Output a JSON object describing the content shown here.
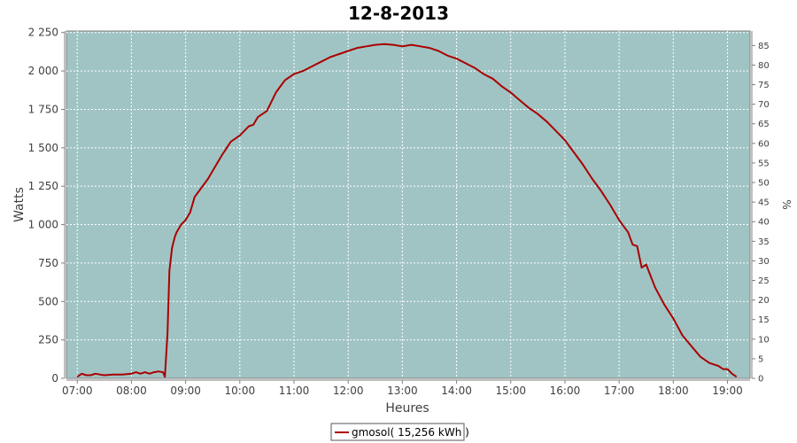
{
  "chart_data": {
    "type": "line",
    "title": "12-8-2013",
    "xlabel": "Heures",
    "ylabel": "Watts",
    "y2label": "%",
    "x_ticks": [
      "07:00",
      "08:00",
      "09:00",
      "10:00",
      "11:00",
      "12:00",
      "13:00",
      "14:00",
      "15:00",
      "16:00",
      "17:00",
      "18:00",
      "19:00"
    ],
    "y_ticks": [
      "0",
      "250",
      "500",
      "750",
      "1 000",
      "1 250",
      "1 500",
      "1 750",
      "2 000",
      "2 250"
    ],
    "y_tick_values": [
      0,
      250,
      500,
      750,
      1000,
      1250,
      1500,
      1750,
      2000,
      2250
    ],
    "y2_ticks": [
      "0",
      "5",
      "10",
      "15",
      "20",
      "25",
      "30",
      "35",
      "40",
      "45",
      "50",
      "55",
      "60",
      "65",
      "70",
      "75",
      "80",
      "85"
    ],
    "y2_tick_values": [
      0,
      5,
      10,
      15,
      20,
      25,
      30,
      35,
      40,
      45,
      50,
      55,
      60,
      65,
      70,
      75,
      80,
      85
    ],
    "xlim": [
      "06:48",
      "19:25"
    ],
    "ylim": [
      0,
      2260
    ],
    "y2lim": [
      0,
      88.7
    ],
    "grid": true,
    "legend_position": "bottom-center",
    "colors": {
      "plot_bg": "#a0c4c4",
      "line": "#aa0000",
      "grid": "#ffffff"
    },
    "series": [
      {
        "name": "gmosol( 15,256 kWh )",
        "x": [
          "07:00",
          "07:05",
          "07:10",
          "07:15",
          "07:20",
          "07:25",
          "07:30",
          "07:40",
          "07:50",
          "08:00",
          "08:05",
          "08:10",
          "08:15",
          "08:20",
          "08:25",
          "08:30",
          "08:35",
          "08:37",
          "08:40",
          "08:42",
          "08:45",
          "08:48",
          "08:50",
          "08:55",
          "09:00",
          "09:05",
          "09:10",
          "09:15",
          "09:20",
          "09:25",
          "09:30",
          "09:40",
          "09:50",
          "10:00",
          "10:05",
          "10:10",
          "10:15",
          "10:20",
          "10:25",
          "10:30",
          "10:35",
          "10:40",
          "10:45",
          "10:50",
          "11:00",
          "11:10",
          "11:20",
          "11:30",
          "11:40",
          "11:50",
          "12:00",
          "12:10",
          "12:20",
          "12:30",
          "12:40",
          "12:50",
          "13:00",
          "13:10",
          "13:20",
          "13:30",
          "13:35",
          "13:40",
          "13:50",
          "14:00",
          "14:10",
          "14:20",
          "14:30",
          "14:40",
          "14:50",
          "15:00",
          "15:10",
          "15:20",
          "15:30",
          "15:40",
          "15:50",
          "16:00",
          "16:10",
          "16:20",
          "16:30",
          "16:40",
          "16:50",
          "17:00",
          "17:05",
          "17:10",
          "17:15",
          "17:20",
          "17:25",
          "17:30",
          "17:40",
          "17:50",
          "18:00",
          "18:10",
          "18:20",
          "18:30",
          "18:40",
          "18:50",
          "18:55",
          "19:00",
          "19:05",
          "19:10"
        ],
        "y": [
          10,
          30,
          20,
          20,
          30,
          25,
          20,
          25,
          25,
          30,
          40,
          30,
          40,
          30,
          40,
          45,
          40,
          10,
          300,
          700,
          850,
          920,
          950,
          1000,
          1030,
          1080,
          1180,
          1220,
          1260,
          1300,
          1350,
          1450,
          1540,
          1580,
          1610,
          1640,
          1650,
          1700,
          1720,
          1740,
          1800,
          1860,
          1900,
          1940,
          1980,
          2000,
          2030,
          2060,
          2090,
          2110,
          2130,
          2150,
          2160,
          2170,
          2175,
          2170,
          2160,
          2170,
          2160,
          2150,
          2140,
          2130,
          2100,
          2080,
          2050,
          2020,
          1980,
          1950,
          1900,
          1860,
          1810,
          1760,
          1720,
          1670,
          1610,
          1550,
          1470,
          1390,
          1300,
          1220,
          1130,
          1030,
          990,
          950,
          870,
          860,
          720,
          740,
          590,
          480,
          390,
          280,
          210,
          140,
          100,
          80,
          60,
          60,
          30,
          10
        ]
      }
    ]
  }
}
